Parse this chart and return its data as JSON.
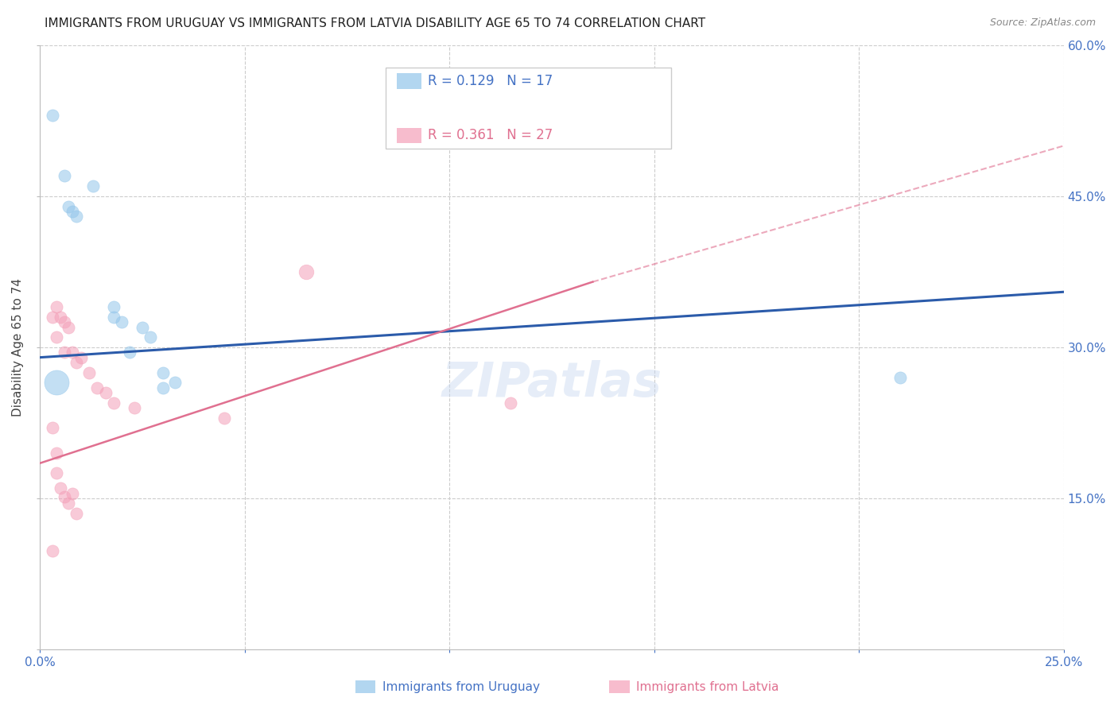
{
  "title": "IMMIGRANTS FROM URUGUAY VS IMMIGRANTS FROM LATVIA DISABILITY AGE 65 TO 74 CORRELATION CHART",
  "source": "Source: ZipAtlas.com",
  "ylabel": "Disability Age 65 to 74",
  "xmin": 0.0,
  "xmax": 0.25,
  "ymin": 0.0,
  "ymax": 0.6,
  "legend_r1": "R = 0.129",
  "legend_n1": "N = 17",
  "legend_r2": "R = 0.361",
  "legend_n2": "N = 27",
  "color_uruguay": "#92C5EA",
  "color_latvia": "#F4A0B8",
  "color_blue_text": "#4472C4",
  "color_pink_text": "#E07090",
  "trendline_color_uruguay": "#2B5BAA",
  "trendline_color_latvia": "#E07090",
  "uruguay_trendline": [
    [
      0.0,
      0.29
    ],
    [
      0.25,
      0.355
    ]
  ],
  "latvia_trendline_solid": [
    [
      0.0,
      0.185
    ],
    [
      0.135,
      0.365
    ]
  ],
  "latvia_trendline_dash": [
    [
      0.135,
      0.365
    ],
    [
      0.25,
      0.5
    ]
  ],
  "uruguay_points": [
    [
      0.003,
      0.53
    ],
    [
      0.006,
      0.47
    ],
    [
      0.007,
      0.44
    ],
    [
      0.008,
      0.435
    ],
    [
      0.009,
      0.43
    ],
    [
      0.013,
      0.46
    ],
    [
      0.018,
      0.34
    ],
    [
      0.018,
      0.33
    ],
    [
      0.02,
      0.325
    ],
    [
      0.022,
      0.295
    ],
    [
      0.025,
      0.32
    ],
    [
      0.027,
      0.31
    ],
    [
      0.03,
      0.275
    ],
    [
      0.03,
      0.26
    ],
    [
      0.033,
      0.265
    ],
    [
      0.004,
      0.265
    ],
    [
      0.21,
      0.27
    ]
  ],
  "uruguay_sizes": [
    120,
    120,
    120,
    120,
    120,
    120,
    120,
    120,
    120,
    120,
    120,
    120,
    120,
    120,
    120,
    500,
    120
  ],
  "latvia_points": [
    [
      0.003,
      0.33
    ],
    [
      0.004,
      0.34
    ],
    [
      0.004,
      0.31
    ],
    [
      0.005,
      0.33
    ],
    [
      0.006,
      0.325
    ],
    [
      0.006,
      0.295
    ],
    [
      0.007,
      0.32
    ],
    [
      0.008,
      0.295
    ],
    [
      0.009,
      0.285
    ],
    [
      0.01,
      0.29
    ],
    [
      0.012,
      0.275
    ],
    [
      0.014,
      0.26
    ],
    [
      0.016,
      0.255
    ],
    [
      0.018,
      0.245
    ],
    [
      0.023,
      0.24
    ],
    [
      0.003,
      0.22
    ],
    [
      0.004,
      0.175
    ],
    [
      0.005,
      0.16
    ],
    [
      0.006,
      0.152
    ],
    [
      0.007,
      0.145
    ],
    [
      0.008,
      0.155
    ],
    [
      0.009,
      0.135
    ],
    [
      0.004,
      0.195
    ],
    [
      0.065,
      0.375
    ],
    [
      0.003,
      0.098
    ],
    [
      0.115,
      0.245
    ],
    [
      0.045,
      0.23
    ]
  ],
  "latvia_sizes": [
    120,
    120,
    120,
    120,
    120,
    120,
    120,
    120,
    120,
    120,
    120,
    120,
    120,
    120,
    120,
    120,
    120,
    120,
    120,
    120,
    120,
    120,
    120,
    180,
    120,
    120,
    120
  ],
  "watermark": "ZIPatlas",
  "background_color": "#FFFFFF"
}
